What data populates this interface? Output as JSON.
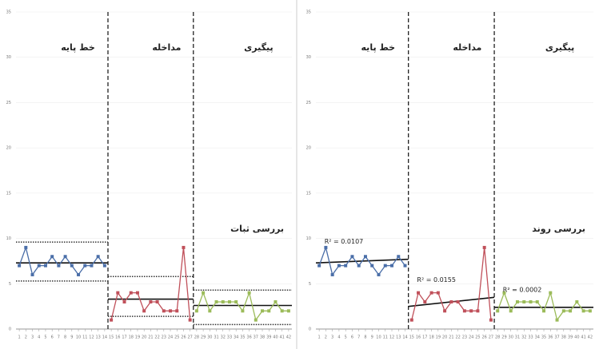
{
  "chart_data": [
    {
      "type": "line",
      "xlim": [
        0.5,
        42.5
      ],
      "ylim": [
        0,
        35
      ],
      "yticks": [
        0,
        5,
        10,
        15,
        20,
        25,
        30,
        35
      ],
      "xticks": [
        1,
        2,
        3,
        4,
        5,
        6,
        7,
        8,
        9,
        10,
        11,
        12,
        13,
        14,
        15,
        16,
        17,
        18,
        19,
        20,
        21,
        22,
        23,
        24,
        25,
        26,
        27,
        28,
        29,
        30,
        31,
        32,
        33,
        34,
        35,
        36,
        37,
        38,
        39,
        40,
        41,
        42
      ],
      "phase_lines": [
        14.5,
        27.5
      ],
      "series": [
        {
          "name": "خط پایه",
          "color": "#4a6ea8",
          "x": [
            1,
            2,
            3,
            4,
            5,
            6,
            7,
            8,
            9,
            10,
            11,
            12,
            13,
            14
          ],
          "values": [
            7,
            9,
            6,
            7,
            7,
            8,
            7,
            8,
            7,
            6,
            7,
            7,
            8,
            7
          ]
        },
        {
          "name": "مداخله",
          "color": "#c0505a",
          "x": [
            15,
            16,
            17,
            18,
            19,
            20,
            21,
            22,
            23,
            24,
            25,
            26,
            27
          ],
          "values": [
            1,
            4,
            3,
            4,
            4,
            2,
            3,
            3,
            2,
            2,
            2,
            9,
            1
          ]
        },
        {
          "name": "پیگیری",
          "color": "#9bbb59",
          "x": [
            28,
            29,
            30,
            31,
            32,
            33,
            34,
            35,
            36,
            37,
            38,
            39,
            40,
            41,
            42
          ],
          "values": [
            2,
            4,
            2,
            3,
            3,
            3,
            3,
            2,
            4,
            1,
            2,
            2,
            3,
            2,
            2
          ]
        }
      ],
      "mean_lines": [
        {
          "x": [
            0.5,
            14.5
          ],
          "values": [
            7.3,
            7.3
          ]
        },
        {
          "x": [
            14.5,
            27.5
          ],
          "values": [
            3.3,
            3.3
          ]
        },
        {
          "x": [
            27.5,
            42.5
          ],
          "values": [
            2.6,
            2.6
          ]
        }
      ],
      "envelopes": [
        {
          "x": [
            0.5,
            14.5
          ],
          "values": [
            9.6,
            9.6
          ]
        },
        {
          "x": [
            0.5,
            14.5
          ],
          "values": [
            5.3,
            5.3
          ]
        },
        {
          "x": [
            14.5,
            27.5
          ],
          "values": [
            5.8,
            5.8
          ]
        },
        {
          "x": [
            14.5,
            27.5
          ],
          "values": [
            1.4,
            1.4
          ]
        },
        {
          "x": [
            27.5,
            42.5
          ],
          "values": [
            4.3,
            4.3
          ]
        },
        {
          "x": [
            27.5,
            42.5
          ],
          "values": [
            0.5,
            0.5
          ]
        }
      ],
      "annotation": "بررسی ثبات"
    },
    {
      "type": "line",
      "xlim": [
        0.5,
        42.5
      ],
      "ylim": [
        0,
        35
      ],
      "yticks": [
        0,
        5,
        10,
        15,
        20,
        25,
        30,
        35
      ],
      "xticks": [
        1,
        2,
        3,
        4,
        5,
        6,
        7,
        8,
        9,
        10,
        11,
        12,
        13,
        14,
        15,
        16,
        17,
        18,
        19,
        20,
        21,
        22,
        23,
        24,
        25,
        26,
        27,
        28,
        29,
        30,
        31,
        32,
        33,
        34,
        35,
        36,
        37,
        38,
        39,
        40,
        41,
        42
      ],
      "phase_lines": [
        14.5,
        27.5
      ],
      "series": [
        {
          "name": "خط پایه",
          "color": "#4a6ea8",
          "x": [
            1,
            2,
            3,
            4,
            5,
            6,
            7,
            8,
            9,
            10,
            11,
            12,
            13,
            14
          ],
          "values": [
            7,
            9,
            6,
            7,
            7,
            8,
            7,
            8,
            7,
            6,
            7,
            7,
            8,
            7
          ]
        },
        {
          "name": "مداخله",
          "color": "#c0505a",
          "x": [
            15,
            16,
            17,
            18,
            19,
            20,
            21,
            22,
            23,
            24,
            25,
            26,
            27
          ],
          "values": [
            1,
            4,
            3,
            4,
            4,
            2,
            3,
            3,
            2,
            2,
            2,
            9,
            1
          ]
        },
        {
          "name": "پیگیری",
          "color": "#9bbb59",
          "x": [
            28,
            29,
            30,
            31,
            32,
            33,
            34,
            35,
            36,
            37,
            38,
            39,
            40,
            41,
            42
          ],
          "values": [
            2,
            4,
            2,
            3,
            3,
            3,
            3,
            2,
            4,
            1,
            2,
            2,
            3,
            2,
            2
          ]
        }
      ],
      "trend_lines": [
        {
          "x": [
            0.5,
            14.5
          ],
          "values": [
            7.3,
            7.7
          ],
          "label": "R² = 0.0107"
        },
        {
          "x": [
            14.5,
            27.5
          ],
          "values": [
            2.5,
            3.5
          ],
          "label": "R² = 0.0155"
        },
        {
          "x": [
            27.5,
            42.5
          ],
          "values": [
            2.4,
            2.4
          ],
          "label": "R² = 0.0002"
        }
      ],
      "annotation": "بررسی روند"
    }
  ]
}
